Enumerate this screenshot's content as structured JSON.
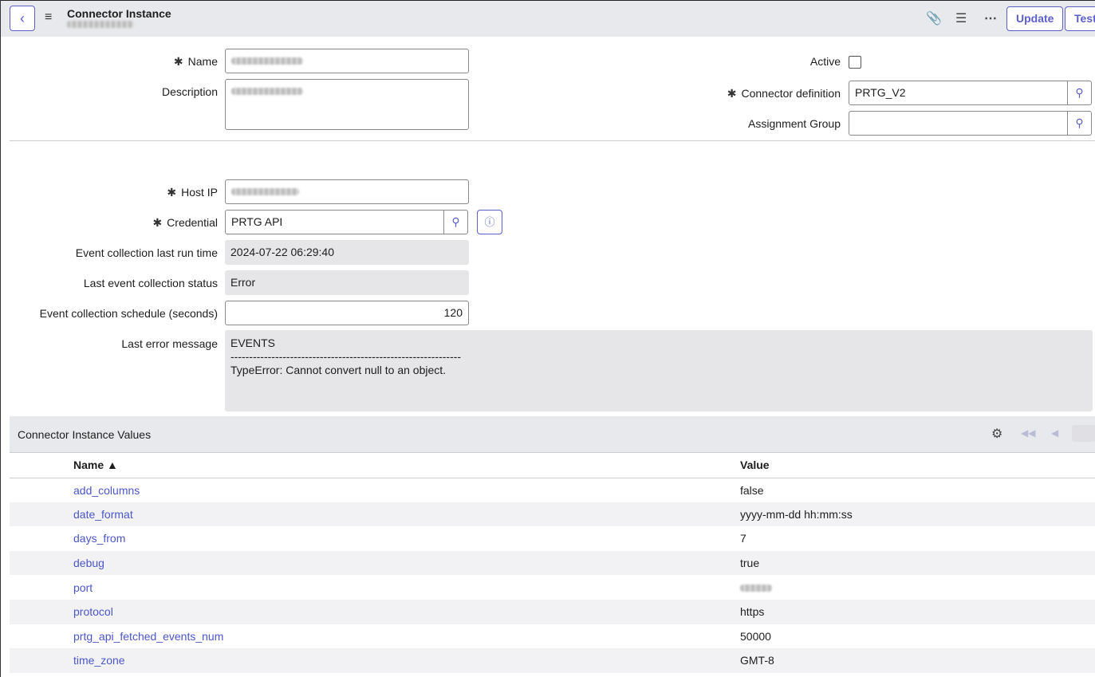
{
  "header": {
    "title": "Connector Instance",
    "update": "Update",
    "test": "Test"
  },
  "form": {
    "name_label": "Name",
    "description_label": "Description",
    "active_label": "Active",
    "active_checked": false,
    "connector_definition_label": "Connector definition",
    "connector_definition_value": "PRTG_V2",
    "assignment_group_label": "Assignment Group",
    "assignment_group_value": "",
    "host_ip_label": "Host IP",
    "credential_label": "Credential",
    "credential_value": "PRTG API",
    "last_run_label": "Event collection last run time",
    "last_run_value": "2024-07-22 06:29:40",
    "status_label": "Last event collection status",
    "status_value": "Error",
    "schedule_label": "Event collection schedule (seconds)",
    "schedule_value": "120",
    "error_label": "Last error message",
    "error_line1": "EVENTS",
    "error_line2": "--------------------------------------------------------------",
    "error_line3": "TypeError: Cannot convert null to an object."
  },
  "related": {
    "title": "Connector Instance Values",
    "col_name": "Name ▲",
    "col_value": "Value",
    "rows": [
      {
        "name": "add_columns",
        "value": "false"
      },
      {
        "name": "date_format",
        "value": "yyyy-mm-dd hh:mm:ss"
      },
      {
        "name": "days_from",
        "value": "7"
      },
      {
        "name": "debug",
        "value": "true"
      },
      {
        "name": "port",
        "value": ""
      },
      {
        "name": "protocol",
        "value": "https"
      },
      {
        "name": "prtg_api_fetched_events_num",
        "value": "50000"
      },
      {
        "name": "time_zone",
        "value": "GMT-8"
      }
    ]
  }
}
